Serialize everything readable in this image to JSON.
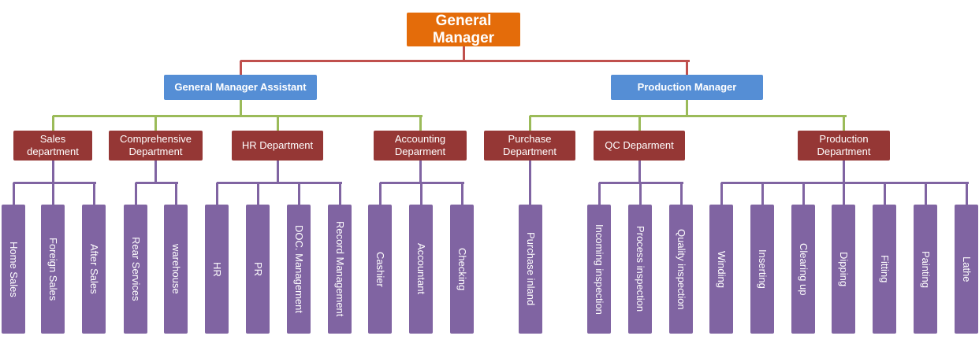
{
  "colors": {
    "top": "#e46c0a",
    "manager": "#558ed5",
    "department": "#953735",
    "unit": "#8064a2",
    "line_top": "#c0504d",
    "line_manager": "#9bbb59",
    "line_department": "#8064a2"
  },
  "root": {
    "label": "General Manager",
    "children": [
      {
        "label": "General Manager  Assistant",
        "children": [
          {
            "label": "Sales department",
            "children": [
              "Home Sales",
              "Foreign Sales",
              "After Sales"
            ]
          },
          {
            "label": "Comprehensive Department",
            "children": [
              "Rear Services",
              "warehouse"
            ]
          },
          {
            "label": "HR Department",
            "children": [
              "HR",
              "PR",
              "DOC. Management",
              "Record Management"
            ]
          },
          {
            "label": "Accounting Deparment",
            "children": [
              "Cashier",
              "Accountant",
              "Checking"
            ]
          }
        ]
      },
      {
        "label": "Production Manager",
        "children": [
          {
            "label": "Purchase Department",
            "children": [
              "Purchase inland"
            ]
          },
          {
            "label": "QC Deparment",
            "children": [
              "Incoming inspection",
              "Process inspection",
              "Quality inspection"
            ]
          },
          {
            "label": "Production Department",
            "children": [
              "Winding",
              "Inserting",
              "Clearing up",
              "Dipping",
              "Fitting",
              "Painting",
              "Lathe"
            ]
          }
        ]
      }
    ]
  }
}
